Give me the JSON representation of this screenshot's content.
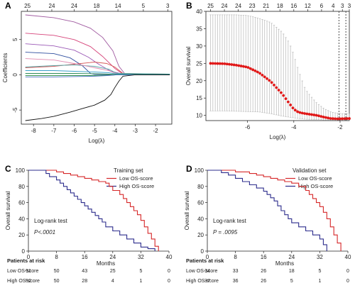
{
  "chart_data": [
    {
      "panel": "A",
      "type": "line",
      "xlabel": "Log(λ)",
      "ylabel": "Coefficients",
      "xlim": [
        -8.6,
        -1.2
      ],
      "ylim": [
        -7,
        9
      ],
      "x_ticks": [
        "-8",
        "-7",
        "-6",
        "-5",
        "-4",
        "-3",
        "-2"
      ],
      "x_tick_values": [
        -8,
        -7,
        -6,
        -5,
        -4,
        -3,
        -2
      ],
      "y_ticks": [
        "-5",
        "0",
        "5"
      ],
      "y_tick_values": [
        -5,
        0,
        5
      ],
      "top_ticks": [
        "25",
        "24",
        "24",
        "18",
        "14",
        "5",
        "3"
      ],
      "top_tick_values": [
        -8.3,
        -7.1,
        -6.0,
        -4.9,
        -3.85,
        -2.6,
        -1.4
      ],
      "series": [
        {
          "color": "#a05aa0",
          "x": [
            -8.4,
            -7,
            -6,
            -5.2,
            -4.6,
            -4.1,
            -3.8,
            -3.5,
            -2.5,
            -1.3
          ],
          "y": [
            8.5,
            8.1,
            7.5,
            6.6,
            5.3,
            3.4,
            1.2,
            0.1,
            0.1,
            0.1
          ]
        },
        {
          "color": "#d6447a",
          "x": [
            -8.4,
            -7,
            -6,
            -5.2,
            -4.6,
            -4.0,
            -3.6,
            -3.0,
            -1.3
          ],
          "y": [
            5.9,
            5.6,
            5.0,
            4.0,
            2.6,
            0.9,
            0.1,
            0.1,
            0.1
          ]
        },
        {
          "color": "#9b59b6",
          "x": [
            -8.4,
            -7,
            -6,
            -5.3,
            -4.8,
            -4.2,
            -3.6,
            -1.3
          ],
          "y": [
            4.4,
            4.1,
            3.5,
            2.5,
            1.5,
            0.5,
            0.1,
            0.1
          ]
        },
        {
          "color": "#2f4f9f",
          "x": [
            -8.4,
            -7,
            -6.2,
            -5.6,
            -5.2,
            -5.0,
            -4.5,
            -1.3
          ],
          "y": [
            3.2,
            3.0,
            2.4,
            1.3,
            0.2,
            0.05,
            0.05,
            0.05
          ]
        },
        {
          "color": "#d65a5a",
          "x": [
            -8.4,
            -7,
            -6,
            -5,
            -4.4,
            -4.0,
            -3.6,
            -1.3
          ],
          "y": [
            1.0,
            1.2,
            1.5,
            1.8,
            1.6,
            1.1,
            0.2,
            0.1
          ]
        },
        {
          "color": "#5ba8a8",
          "x": [
            -8.4,
            -7,
            -6,
            -5,
            -4.3,
            -3.9,
            -1.3
          ],
          "y": [
            1.1,
            1.3,
            1.4,
            1.2,
            0.8,
            0.2,
            0.1
          ]
        },
        {
          "color": "#e08ab0",
          "x": [
            -8.4,
            -7,
            -6,
            -5,
            -4.3,
            -3.9,
            -1.3
          ],
          "y": [
            2.3,
            2.1,
            1.6,
            1.0,
            0.6,
            0.1,
            0.1
          ]
        },
        {
          "color": "#3aa0c8",
          "x": [
            -8.4,
            -7,
            -6,
            -5,
            -4.3,
            -3.9,
            -1.3
          ],
          "y": [
            0.6,
            0.6,
            0.5,
            0.4,
            0.3,
            0.1,
            0.1
          ]
        },
        {
          "color": "#2e8b57",
          "x": [
            -8.4,
            -7,
            -6,
            -5,
            -4.3,
            -3.9,
            -1.3
          ],
          "y": [
            0.2,
            0.2,
            0.2,
            0.15,
            0.1,
            0.05,
            0.05
          ]
        },
        {
          "color": "#1a8a3a",
          "x": [
            -8.4,
            -7,
            -6,
            -5,
            -4.3,
            -3.9,
            -1.3
          ],
          "y": [
            -0.1,
            -0.1,
            -0.1,
            -0.1,
            -0.05,
            0,
            0
          ]
        },
        {
          "color": "#4b6fbf",
          "x": [
            -8.4,
            -7,
            -6,
            -5,
            -4.3,
            -3.9,
            -1.3
          ],
          "y": [
            -0.3,
            -0.3,
            -0.25,
            -0.2,
            -0.1,
            0,
            0
          ]
        },
        {
          "color": "#111111",
          "x": [
            -8.4,
            -7.6,
            -7,
            -6.2,
            -5.6,
            -5.0,
            -4.5,
            -4.2,
            -4.0,
            -3.8,
            -3.6,
            -3.0,
            -2.0,
            -1.3
          ],
          "y": [
            -6.5,
            -6.2,
            -5.9,
            -5.3,
            -4.8,
            -4.3,
            -3.6,
            -2.8,
            -1.8,
            -0.9,
            -0.2,
            0,
            0,
            0
          ]
        }
      ]
    },
    {
      "panel": "B",
      "type": "scatter",
      "xlabel": "Log(λ)",
      "ylabel": "Overall survival",
      "xlim": [
        -7.8,
        -1.6
      ],
      "ylim": [
        8.5,
        40
      ],
      "x_ticks": [
        "-6",
        "-4",
        "-2"
      ],
      "x_tick_values": [
        -6,
        -4,
        -2
      ],
      "y_ticks": [
        "10",
        "15",
        "20",
        "25",
        "30",
        "35",
        "40"
      ],
      "y_tick_values": [
        10,
        15,
        20,
        25,
        30,
        35,
        40
      ],
      "top_ticks": [
        "25",
        "24",
        "24",
        "23",
        "21",
        "18",
        "16",
        "12",
        "6",
        "4",
        "3",
        "3"
      ],
      "top_tick_values": [
        -7.6,
        -7.0,
        -6.4,
        -5.8,
        -5.2,
        -4.6,
        -4.0,
        -3.4,
        -2.8,
        -2.3,
        -1.9,
        -1.6
      ],
      "vlines": [
        -2.05,
        -1.75
      ],
      "curve_x": [
        -7.6,
        -7.0,
        -6.5,
        -6.0,
        -5.5,
        -5.0,
        -4.5,
        -4.2,
        -4.0,
        -3.8,
        -3.5,
        -3.2,
        -3.0,
        -2.7,
        -2.4,
        -2.1,
        -1.9,
        -1.6
      ],
      "curve_y": [
        25,
        24.9,
        24.5,
        23.9,
        22.3,
        19.8,
        16.2,
        13.5,
        11.8,
        10.9,
        10.5,
        10.2,
        10.0,
        9.5,
        9.1,
        9.0,
        9.05,
        9.1
      ],
      "err_upper": [
        39,
        39,
        39,
        38.8,
        38,
        36.8,
        34,
        31,
        27.5,
        23,
        17.5,
        15,
        13.5,
        12,
        11,
        10.6,
        10.5,
        10.5
      ],
      "err_lower": [
        11.3,
        11.3,
        11.2,
        11.1,
        11.0,
        10.5,
        9.8,
        9.5,
        9.3,
        9.1,
        8.9,
        8.8,
        8.8,
        8.7,
        8.7,
        8.7,
        8.7,
        8.7
      ]
    },
    {
      "panel": "C",
      "type": "line",
      "title": "Training set",
      "xlabel": "Months",
      "ylabel": "Overall survival",
      "xlim": [
        0,
        40
      ],
      "ylim": [
        0,
        100
      ],
      "x_ticks": [
        "0",
        "8",
        "16",
        "24",
        "32",
        "40"
      ],
      "x_tick_values": [
        0,
        8,
        16,
        24,
        32,
        40
      ],
      "y_ticks": [
        "0",
        "20",
        "40",
        "60",
        "80",
        "100"
      ],
      "y_tick_values": [
        0,
        20,
        40,
        60,
        80,
        100
      ],
      "annotation_test": "Log-rank test",
      "annotation_p": "P<.0001",
      "series": [
        {
          "name": "Low OS-score",
          "color": "#d62728",
          "x": [
            0,
            6,
            8,
            10,
            12,
            14,
            16,
            18,
            20,
            22,
            23,
            24,
            26,
            27,
            28,
            29,
            30,
            31,
            32,
            33,
            34,
            35,
            36,
            37
          ],
          "y": [
            100,
            100,
            98,
            96,
            94,
            92,
            90,
            88,
            86,
            84,
            80,
            75,
            70,
            65,
            60,
            55,
            50,
            45,
            38,
            30,
            22,
            15,
            6,
            0
          ]
        },
        {
          "name": "High OS-score",
          "color": "#2c2c8c",
          "x": [
            0,
            5,
            6,
            8,
            9,
            10,
            11,
            12,
            13,
            14,
            15,
            16,
            17,
            18,
            19,
            20,
            21,
            22,
            24,
            26,
            28,
            30,
            32,
            34,
            36
          ],
          "y": [
            100,
            96,
            92,
            88,
            84,
            80,
            76,
            72,
            68,
            64,
            60,
            56,
            52,
            48,
            44,
            40,
            36,
            30,
            25,
            20,
            15,
            10,
            5,
            3,
            0
          ]
        }
      ],
      "risk_header": "Patients at risk",
      "risk_x": [
        0,
        8,
        16,
        24,
        32,
        40
      ],
      "risk_rows": [
        {
          "label": "Low  OS-score",
          "values": [
            "51",
            "50",
            "43",
            "25",
            "5",
            "0"
          ]
        },
        {
          "label": "High OS-score",
          "values": [
            "52",
            "50",
            "28",
            "4",
            "1",
            "0"
          ]
        }
      ]
    },
    {
      "panel": "D",
      "type": "line",
      "title": "Validation set",
      "xlabel": "Months",
      "ylabel": "Overall survival",
      "xlim": [
        0,
        40
      ],
      "ylim": [
        0,
        100
      ],
      "x_ticks": [
        "0",
        "8",
        "16",
        "24",
        "32",
        "40"
      ],
      "x_tick_values": [
        0,
        8,
        16,
        24,
        32,
        40
      ],
      "y_ticks": [
        "0",
        "20",
        "40",
        "60",
        "80",
        "100"
      ],
      "y_tick_values": [
        0,
        20,
        40,
        60,
        80,
        100
      ],
      "annotation_test": "Log-rank test",
      "annotation_p": "P = .0095",
      "series": [
        {
          "name": "Low OS-score",
          "color": "#d62728",
          "x": [
            0,
            6,
            8,
            12,
            14,
            16,
            18,
            20,
            22,
            24,
            26,
            28,
            29,
            30,
            31,
            32,
            33,
            34,
            35,
            36,
            37,
            38
          ],
          "y": [
            100,
            100,
            98,
            96,
            94,
            92,
            90,
            88,
            86,
            84,
            80,
            75,
            70,
            65,
            60,
            55,
            48,
            40,
            30,
            20,
            10,
            0
          ]
        },
        {
          "name": "High OS-score",
          "color": "#2c2c8c",
          "x": [
            0,
            4,
            6,
            8,
            10,
            12,
            14,
            16,
            17,
            18,
            19,
            20,
            21,
            22,
            23,
            24,
            26,
            28,
            30,
            32,
            33,
            34
          ],
          "y": [
            100,
            97,
            94,
            90,
            86,
            82,
            78,
            74,
            70,
            66,
            62,
            56,
            50,
            45,
            40,
            35,
            30,
            25,
            20,
            15,
            8,
            0
          ]
        }
      ],
      "risk_header": "Patients at risk",
      "risk_x": [
        0,
        8,
        16,
        24,
        32,
        40
      ],
      "risk_rows": [
        {
          "label": "Low  OS-score",
          "values": [
            "34",
            "33",
            "26",
            "18",
            "5",
            "0"
          ]
        },
        {
          "label": "High OS-score",
          "values": [
            "37",
            "36",
            "26",
            "5",
            "1",
            "0"
          ]
        }
      ]
    }
  ]
}
